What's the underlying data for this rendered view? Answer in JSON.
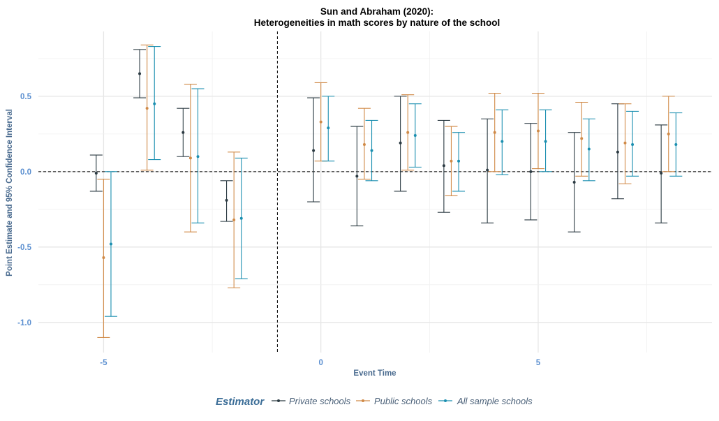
{
  "chart_data": {
    "type": "scatter",
    "title_lines": [
      "Sun and Abraham (2020):",
      "Heterogeneities in math scores by nature of the school"
    ],
    "xlabel": "Event Time",
    "ylabel": "Point Estimate and 95% Confidence Interval",
    "xlim": [
      -6.5,
      9.0
    ],
    "ylim": [
      -1.2,
      0.93
    ],
    "x_ticks": [
      -5,
      0,
      5
    ],
    "x_tick_labels": [
      "-5",
      "0",
      "5"
    ],
    "y_ticks": [
      -1.0,
      -0.5,
      0.0,
      0.5
    ],
    "y_tick_labels": [
      "-1.0",
      "-0.5",
      "0.0",
      "0.5"
    ],
    "reference_lines": {
      "horizontal_y": 0.0,
      "vertical_x": -1
    },
    "grid": true,
    "legend_position": "bottom",
    "legend_title": "Estimator",
    "legend_items": [
      "Private schools",
      "Public schools",
      "All sample schools"
    ],
    "series": [
      {
        "name": "Private schools",
        "color": "#2b3a42",
        "points": [
          {
            "x": -5,
            "y": -0.01,
            "lo": -0.13,
            "hi": 0.11
          },
          {
            "x": -4,
            "y": 0.65,
            "lo": 0.49,
            "hi": 0.81
          },
          {
            "x": -3,
            "y": 0.26,
            "lo": 0.1,
            "hi": 0.42
          },
          {
            "x": -2,
            "y": -0.19,
            "lo": -0.33,
            "hi": -0.06
          },
          {
            "x": 0,
            "y": 0.14,
            "lo": -0.2,
            "hi": 0.49
          },
          {
            "x": 1,
            "y": -0.03,
            "lo": -0.36,
            "hi": 0.3
          },
          {
            "x": 2,
            "y": 0.19,
            "lo": -0.13,
            "hi": 0.5
          },
          {
            "x": 3,
            "y": 0.04,
            "lo": -0.27,
            "hi": 0.34
          },
          {
            "x": 4,
            "y": 0.01,
            "lo": -0.34,
            "hi": 0.35
          },
          {
            "x": 5,
            "y": 0.0,
            "lo": -0.32,
            "hi": 0.32
          },
          {
            "x": 6,
            "y": -0.07,
            "lo": -0.4,
            "hi": 0.26
          },
          {
            "x": 7,
            "y": 0.13,
            "lo": -0.18,
            "hi": 0.45
          },
          {
            "x": 8,
            "y": -0.01,
            "lo": -0.34,
            "hi": 0.31
          }
        ]
      },
      {
        "name": "Public schools",
        "color": "#d08a47",
        "points": [
          {
            "x": -5,
            "y": -0.57,
            "lo": -1.1,
            "hi": -0.05
          },
          {
            "x": -4,
            "y": 0.42,
            "lo": 0.01,
            "hi": 0.84
          },
          {
            "x": -3,
            "y": 0.09,
            "lo": -0.4,
            "hi": 0.58
          },
          {
            "x": -2,
            "y": -0.32,
            "lo": -0.77,
            "hi": 0.13
          },
          {
            "x": 0,
            "y": 0.33,
            "lo": 0.07,
            "hi": 0.59
          },
          {
            "x": 1,
            "y": 0.18,
            "lo": -0.05,
            "hi": 0.42
          },
          {
            "x": 2,
            "y": 0.26,
            "lo": 0.01,
            "hi": 0.51
          },
          {
            "x": 3,
            "y": 0.07,
            "lo": -0.16,
            "hi": 0.3
          },
          {
            "x": 4,
            "y": 0.26,
            "lo": 0.0,
            "hi": 0.52
          },
          {
            "x": 5,
            "y": 0.27,
            "lo": 0.02,
            "hi": 0.52
          },
          {
            "x": 6,
            "y": 0.22,
            "lo": -0.03,
            "hi": 0.46
          },
          {
            "x": 7,
            "y": 0.19,
            "lo": -0.08,
            "hi": 0.45
          },
          {
            "x": 8,
            "y": 0.25,
            "lo": 0.0,
            "hi": 0.5
          }
        ]
      },
      {
        "name": "All sample schools",
        "color": "#1b8fb0",
        "points": [
          {
            "x": -5,
            "y": -0.48,
            "lo": -0.96,
            "hi": 0.0
          },
          {
            "x": -4,
            "y": 0.45,
            "lo": 0.08,
            "hi": 0.83
          },
          {
            "x": -3,
            "y": 0.1,
            "lo": -0.34,
            "hi": 0.55
          },
          {
            "x": -2,
            "y": -0.31,
            "lo": -0.71,
            "hi": 0.09
          },
          {
            "x": 0,
            "y": 0.29,
            "lo": 0.07,
            "hi": 0.5
          },
          {
            "x": 1,
            "y": 0.14,
            "lo": -0.06,
            "hi": 0.34
          },
          {
            "x": 2,
            "y": 0.24,
            "lo": 0.03,
            "hi": 0.45
          },
          {
            "x": 3,
            "y": 0.07,
            "lo": -0.13,
            "hi": 0.26
          },
          {
            "x": 4,
            "y": 0.2,
            "lo": -0.02,
            "hi": 0.41
          },
          {
            "x": 5,
            "y": 0.2,
            "lo": 0.0,
            "hi": 0.41
          },
          {
            "x": 6,
            "y": 0.15,
            "lo": -0.06,
            "hi": 0.35
          },
          {
            "x": 7,
            "y": 0.18,
            "lo": -0.03,
            "hi": 0.4
          },
          {
            "x": 8,
            "y": 0.18,
            "lo": -0.03,
            "hi": 0.39
          }
        ]
      }
    ]
  }
}
